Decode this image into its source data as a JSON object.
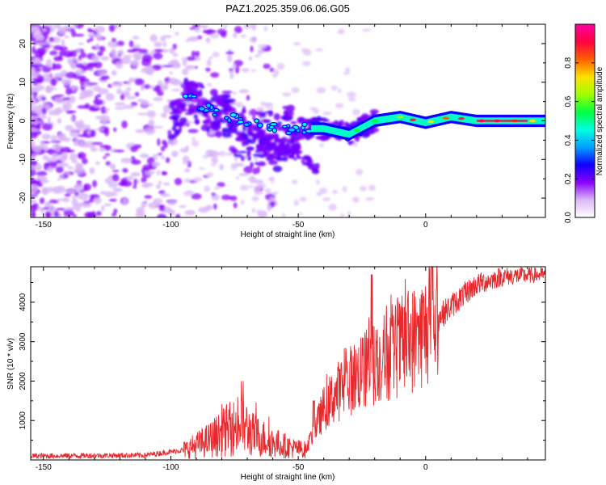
{
  "title": "PAZ1.2025.359.06.06.G05",
  "chart_data": [
    {
      "type": "heatmap",
      "name": "spectrogram",
      "xlabel": "Height of straight line (km)",
      "ylabel": "Frequency (Hz)",
      "xlim": [
        -155,
        47
      ],
      "ylim": [
        -25,
        25
      ],
      "xticks": [
        -150,
        -100,
        -50,
        0
      ],
      "yticks": [
        -20,
        -10,
        0,
        10,
        20
      ],
      "colorbar": {
        "label": "Normalized spectral amplitude",
        "range": [
          0,
          1
        ],
        "ticks": [
          "0.0",
          "0.2",
          "0.4",
          "0.6",
          "0.8"
        ],
        "colors": [
          "#ffffff",
          "#dcb8f5",
          "#8a00ff",
          "#1000ff",
          "#00a0ff",
          "#00ffe0",
          "#00ff40",
          "#a0ff00",
          "#ffe000",
          "#ff6000",
          "#ff0040",
          "#ff00a0"
        ]
      },
      "ridge": {
        "description_points_km_hz": [
          [
            -95,
            7
          ],
          [
            -85,
            3
          ],
          [
            -70,
            -1
          ],
          [
            -55,
            -2
          ],
          [
            -40,
            -2
          ],
          [
            -30,
            -3.5
          ],
          [
            -20,
            0
          ],
          [
            -10,
            1
          ],
          [
            0,
            -0.5
          ],
          [
            10,
            1
          ],
          [
            20,
            0
          ],
          [
            47,
            0
          ]
        ]
      }
    },
    {
      "type": "line",
      "name": "snr",
      "xlabel": "Height of straight line (km)",
      "ylabel": "SNR (10 * v/v)",
      "xlim": [
        -155,
        47
      ],
      "ylim": [
        0,
        4900
      ],
      "xticks": [
        -150,
        -100,
        -50,
        0
      ],
      "yticks": [
        1000,
        2000,
        3000,
        4000
      ],
      "color": "#e8282a",
      "envelope_km_value": [
        [
          -155,
          100
        ],
        [
          -110,
          120
        ],
        [
          -95,
          250
        ],
        [
          -85,
          500
        ],
        [
          -78,
          750
        ],
        [
          -72,
          900
        ],
        [
          -68,
          650
        ],
        [
          -60,
          450
        ],
        [
          -52,
          300
        ],
        [
          -47,
          250
        ],
        [
          -44,
          700
        ],
        [
          -40,
          1300
        ],
        [
          -35,
          1700
        ],
        [
          -30,
          2000
        ],
        [
          -25,
          2250
        ],
        [
          -20,
          2450
        ],
        [
          -15,
          2650
        ],
        [
          -10,
          2850
        ],
        [
          -5,
          3050
        ],
        [
          0,
          3300
        ],
        [
          5,
          3600
        ],
        [
          10,
          3900
        ],
        [
          15,
          4200
        ],
        [
          20,
          4450
        ],
        [
          30,
          4650
        ],
        [
          47,
          4700
        ]
      ]
    }
  ]
}
